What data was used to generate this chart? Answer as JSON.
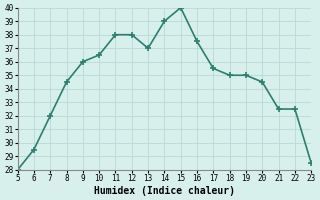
{
  "x": [
    5,
    6,
    7,
    8,
    9,
    10,
    11,
    12,
    13,
    14,
    15,
    16,
    17,
    18,
    19,
    20,
    21,
    22,
    23
  ],
  "y": [
    28,
    29.5,
    32,
    34.5,
    36,
    36.5,
    38,
    38,
    37,
    39,
    40,
    37.5,
    35.5,
    35,
    35,
    34.5,
    32.5,
    32.5,
    28.5
  ],
  "xlabel": "Humidex (Indice chaleur)",
  "ylim": [
    28,
    40
  ],
  "xlim": [
    5,
    23
  ],
  "yticks": [
    28,
    29,
    30,
    31,
    32,
    33,
    34,
    35,
    36,
    37,
    38,
    39,
    40
  ],
  "xticks": [
    5,
    6,
    7,
    8,
    9,
    10,
    11,
    12,
    13,
    14,
    15,
    16,
    17,
    18,
    19,
    20,
    21,
    22,
    23
  ],
  "line_color": "#2e7d6e",
  "marker_color": "#2e7d6e",
  "bg_color": "#d8f0ec",
  "grid_color": "#b8d8d4",
  "text_color": "#000000",
  "font_family": "monospace"
}
